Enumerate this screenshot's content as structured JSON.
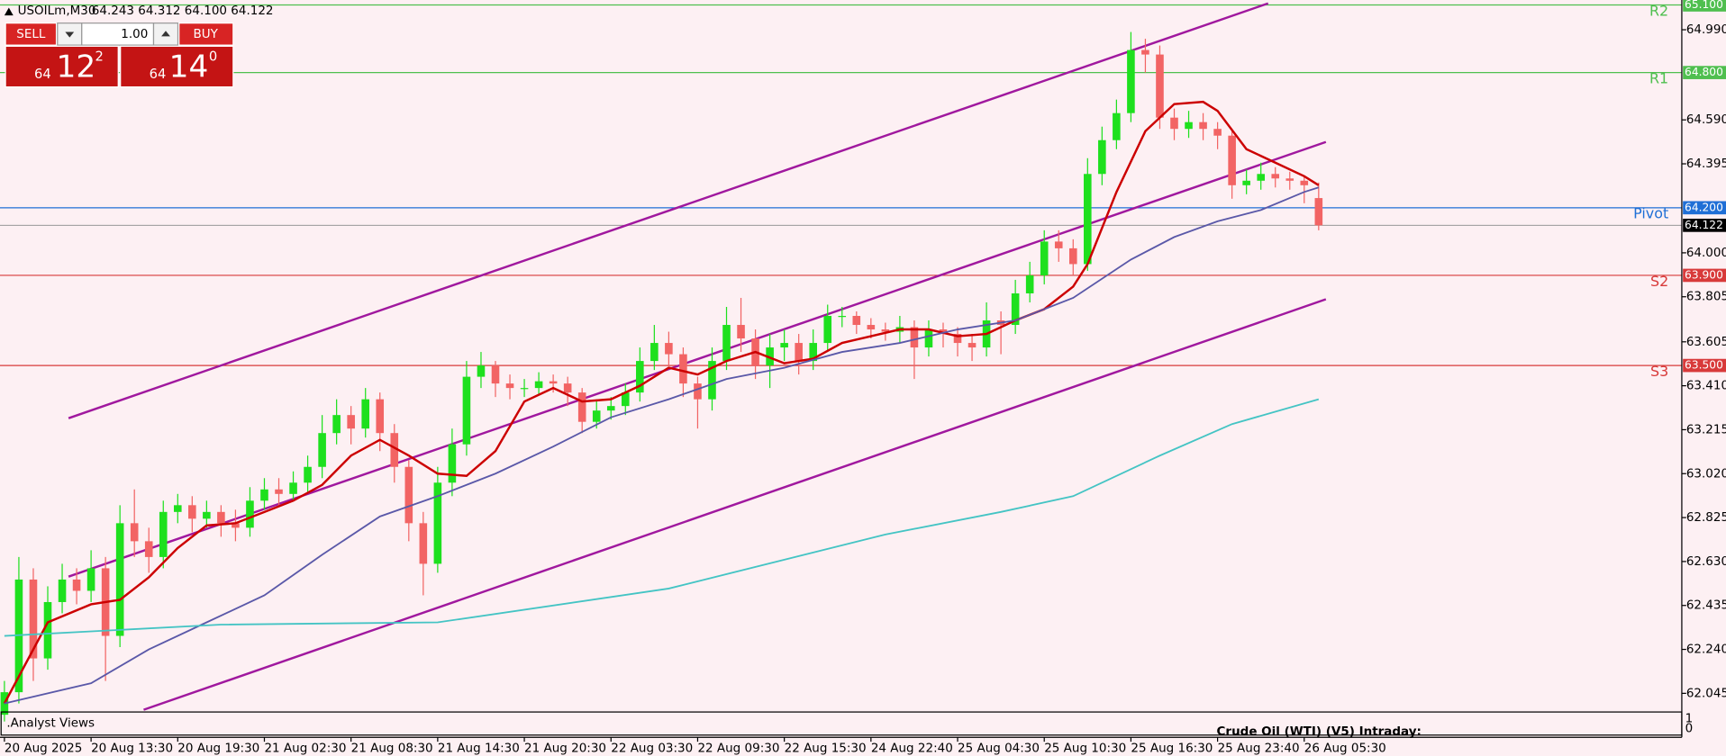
{
  "header": {
    "symbol": "USOILm,M30",
    "ohlc": "64.243 64.312 64.100 64.122"
  },
  "trade_panel": {
    "sell": "SELL",
    "buy": "BUY",
    "lot": "1.00",
    "sell_price": {
      "prefix": "64",
      "big": "12",
      "sup": "2"
    },
    "buy_price": {
      "prefix": "64",
      "big": "14",
      "sup": "0"
    }
  },
  "indicator_panel": {
    "name": ".Analyst Views",
    "caption": "Crude Oil (WTI) (V5) Intraday:",
    "yticks": [
      "1",
      "0"
    ]
  },
  "chart_data": {
    "type": "candlestick",
    "up_color": "#1ee01e",
    "down_color": "#f26464",
    "ylim": [
      61.972,
      65.122
    ],
    "yticks": [
      {
        "value": 64.99,
        "label": "64.990"
      },
      {
        "value": 64.59,
        "label": "64.590"
      },
      {
        "value": 64.395,
        "label": "64.395"
      },
      {
        "value": 64.0,
        "label": "64.000"
      },
      {
        "value": 63.805,
        "label": "63.805"
      },
      {
        "value": 63.605,
        "label": "63.605"
      },
      {
        "value": 63.41,
        "label": "63.410"
      },
      {
        "value": 63.215,
        "label": "63.215"
      },
      {
        "value": 63.02,
        "label": "63.020"
      },
      {
        "value": 62.825,
        "label": "62.825"
      },
      {
        "value": 62.63,
        "label": "62.630"
      },
      {
        "value": 62.435,
        "label": "62.435"
      },
      {
        "value": 62.24,
        "label": "62.240"
      },
      {
        "value": 62.045,
        "label": "62.045"
      }
    ],
    "categories": [
      "20 Aug 2025",
      null,
      null,
      null,
      null,
      null,
      "20 Aug 13:30",
      null,
      null,
      null,
      null,
      null,
      "20 Aug 19:30",
      null,
      null,
      null,
      null,
      null,
      "21 Aug 02:30",
      null,
      null,
      null,
      null,
      null,
      "21 Aug 08:30",
      null,
      null,
      null,
      null,
      null,
      "21 Aug 14:30",
      null,
      null,
      null,
      null,
      null,
      "21 Aug 20:30",
      null,
      null,
      null,
      null,
      null,
      "22 Aug 03:30",
      null,
      null,
      null,
      null,
      null,
      "22 Aug 09:30",
      null,
      null,
      null,
      null,
      null,
      "22 Aug 15:30",
      null,
      null,
      null,
      null,
      null,
      "24 Aug 22:40",
      null,
      null,
      null,
      null,
      null,
      "25 Aug 04:30",
      null,
      null,
      null,
      null,
      null,
      "25 Aug 10:30",
      null,
      null,
      null,
      null,
      null,
      "25 Aug 16:30",
      null,
      null,
      null,
      null,
      null,
      "25 Aug 23:40",
      null,
      null,
      null,
      null,
      null,
      "26 Aug 05:30",
      null
    ],
    "open": [
      61.95,
      62.05,
      62.55,
      62.2,
      62.45,
      62.55,
      62.5,
      62.6,
      62.3,
      62.8,
      62.72,
      62.65,
      62.85,
      62.88,
      62.82,
      62.85,
      62.8,
      62.78,
      62.9,
      62.95,
      62.93,
      62.98,
      63.05,
      63.2,
      63.28,
      63.22,
      63.35,
      63.2,
      63.05,
      62.8,
      62.62,
      62.98,
      63.15,
      63.45,
      63.5,
      63.42,
      63.4,
      63.4,
      63.43,
      63.42,
      63.38,
      63.25,
      63.3,
      63.32,
      63.38,
      63.52,
      63.6,
      63.55,
      63.42,
      63.35,
      63.52,
      63.68,
      63.62,
      63.5,
      63.58,
      63.6,
      63.52,
      63.6,
      63.72,
      63.72,
      63.68,
      63.66,
      63.65,
      63.67,
      63.58,
      63.66,
      63.64,
      63.6,
      63.58,
      63.7,
      63.68,
      63.82,
      63.9,
      64.05,
      64.02,
      63.95,
      64.35,
      64.5,
      64.62,
      64.9,
      64.88,
      64.6,
      64.55,
      64.58,
      64.55,
      64.52,
      64.3,
      64.32,
      64.35,
      64.33,
      64.32,
      64.243
    ],
    "high": [
      62.1,
      62.65,
      62.6,
      62.52,
      62.62,
      62.6,
      62.68,
      62.65,
      62.88,
      62.95,
      62.78,
      62.9,
      62.93,
      62.92,
      62.9,
      62.88,
      62.86,
      62.96,
      63.0,
      63.0,
      63.03,
      63.1,
      63.28,
      63.35,
      63.32,
      63.4,
      63.38,
      63.24,
      63.08,
      62.85,
      63.05,
      63.22,
      63.52,
      63.56,
      63.52,
      63.46,
      63.44,
      63.47,
      63.46,
      63.45,
      63.4,
      63.35,
      63.36,
      63.42,
      63.58,
      63.68,
      63.65,
      63.58,
      63.45,
      63.58,
      63.76,
      63.8,
      63.66,
      63.64,
      63.66,
      63.64,
      63.66,
      63.77,
      63.76,
      63.74,
      63.71,
      63.69,
      63.72,
      63.7,
      63.7,
      63.69,
      63.67,
      63.64,
      63.78,
      63.74,
      63.88,
      63.96,
      64.1,
      64.1,
      64.06,
      64.42,
      64.56,
      64.68,
      64.98,
      64.95,
      64.92,
      64.64,
      64.63,
      64.62,
      64.58,
      64.54,
      64.37,
      64.4,
      64.38,
      64.36,
      64.34,
      64.312
    ],
    "low": [
      61.92,
      62.0,
      62.1,
      62.15,
      62.4,
      62.44,
      62.45,
      62.1,
      62.25,
      62.65,
      62.58,
      62.6,
      62.8,
      62.76,
      62.78,
      62.74,
      62.72,
      62.74,
      62.86,
      62.88,
      62.9,
      62.94,
      63.0,
      63.15,
      63.15,
      63.18,
      63.12,
      62.98,
      62.72,
      62.48,
      62.58,
      62.92,
      63.1,
      63.4,
      63.36,
      63.35,
      63.36,
      63.37,
      63.38,
      63.32,
      63.2,
      63.22,
      63.26,
      63.28,
      63.34,
      63.48,
      63.5,
      63.36,
      63.22,
      63.3,
      63.48,
      63.56,
      63.44,
      63.4,
      63.52,
      63.46,
      63.48,
      63.56,
      63.67,
      63.64,
      63.62,
      63.61,
      63.6,
      63.44,
      63.54,
      63.58,
      63.54,
      63.52,
      63.54,
      63.55,
      63.64,
      63.78,
      63.86,
      63.96,
      63.9,
      63.92,
      64.3,
      64.46,
      64.58,
      64.8,
      64.55,
      64.5,
      64.51,
      64.5,
      64.46,
      64.24,
      64.26,
      64.28,
      64.29,
      64.28,
      64.22,
      64.1
    ],
    "close": [
      62.05,
      62.55,
      62.2,
      62.45,
      62.55,
      62.5,
      62.6,
      62.3,
      62.8,
      62.72,
      62.65,
      62.85,
      62.88,
      62.82,
      62.85,
      62.8,
      62.78,
      62.9,
      62.95,
      62.93,
      62.98,
      63.05,
      63.2,
      63.28,
      63.22,
      63.35,
      63.2,
      63.05,
      62.8,
      62.62,
      62.98,
      63.15,
      63.45,
      63.5,
      63.42,
      63.4,
      63.4,
      63.43,
      63.42,
      63.38,
      63.25,
      63.3,
      63.32,
      63.38,
      63.52,
      63.6,
      63.55,
      63.42,
      63.35,
      63.52,
      63.68,
      63.62,
      63.5,
      63.58,
      63.6,
      63.52,
      63.6,
      63.72,
      63.72,
      63.68,
      63.66,
      63.65,
      63.67,
      63.58,
      63.66,
      63.64,
      63.6,
      63.58,
      63.7,
      63.68,
      63.82,
      63.9,
      64.05,
      64.02,
      63.95,
      64.35,
      64.5,
      64.62,
      64.9,
      64.88,
      64.6,
      64.55,
      64.58,
      64.55,
      64.52,
      64.3,
      64.32,
      64.35,
      64.33,
      64.32,
      64.3,
      64.122
    ],
    "lines": [
      {
        "color": "#cc0000",
        "x": [
          0,
          3,
          6,
          8,
          10,
          12,
          14,
          16,
          18,
          20,
          22,
          24,
          26,
          28,
          30,
          32,
          34,
          36,
          38,
          40,
          42,
          44,
          46,
          48,
          50,
          52,
          54,
          56,
          58,
          60,
          62,
          64,
          66,
          68,
          70,
          72,
          74,
          75,
          77,
          79,
          81,
          83,
          84,
          86,
          88,
          90,
          91
        ],
        "values": [
          62.0,
          62.36,
          62.44,
          62.46,
          62.56,
          62.69,
          62.79,
          62.8,
          62.85,
          62.9,
          62.97,
          63.1,
          63.17,
          63.1,
          63.02,
          63.01,
          63.12,
          63.34,
          63.4,
          63.34,
          63.35,
          63.41,
          63.49,
          63.46,
          63.52,
          63.56,
          63.51,
          63.53,
          63.6,
          63.63,
          63.66,
          63.66,
          63.63,
          63.64,
          63.7,
          63.75,
          63.85,
          63.95,
          64.27,
          64.54,
          64.66,
          64.67,
          64.63,
          64.46,
          64.4,
          64.34,
          64.3
        ]
      },
      {
        "color": "#5a58a8",
        "x": [
          0,
          6,
          10,
          14,
          18,
          22,
          26,
          30,
          34,
          38,
          42,
          46,
          50,
          54,
          58,
          62,
          66,
          70,
          74,
          78,
          81,
          84,
          87,
          90,
          91
        ],
        "values": [
          62.0,
          62.09,
          62.24,
          62.36,
          62.48,
          62.66,
          62.83,
          62.92,
          63.02,
          63.14,
          63.27,
          63.35,
          63.44,
          63.49,
          63.56,
          63.6,
          63.66,
          63.7,
          63.8,
          63.97,
          64.07,
          64.14,
          64.19,
          64.27,
          64.29
        ]
      },
      {
        "color": "#44c4c4",
        "x": [
          0,
          15,
          30,
          46,
          61,
          69,
          74,
          80,
          85,
          91
        ],
        "values": [
          62.3,
          62.35,
          62.36,
          62.51,
          62.75,
          62.85,
          62.92,
          63.1,
          63.24,
          63.35
        ]
      }
    ],
    "trendlines": [
      {
        "color": "#a0189e",
        "x": [
          4.44,
          87.5
        ],
        "values": [
          63.266,
          65.107
        ]
      },
      {
        "color": "#a0189e",
        "x": [
          4.44,
          91.5
        ],
        "values": [
          62.563,
          64.492
        ]
      },
      {
        "color": "#a0189e",
        "x": [
          9.64,
          91.5
        ],
        "values": [
          61.972,
          63.794
        ]
      }
    ],
    "levels": [
      {
        "name": "R2",
        "value": 65.1,
        "label": "65.100",
        "color": "#4fbf4f"
      },
      {
        "name": "R1",
        "value": 64.8,
        "label": "64.800",
        "color": "#4fbf4f"
      },
      {
        "name": "Pivot",
        "value": 64.2,
        "label": "64.200",
        "color": "#1f6fd6"
      },
      {
        "name": "S2",
        "value": 63.9,
        "label": "63.900",
        "color": "#d83a3a"
      },
      {
        "name": "S3",
        "value": 63.5,
        "label": "63.500",
        "color": "#d83a3a"
      }
    ],
    "current": {
      "value": 64.122,
      "label": "64.122",
      "color": "#000000"
    }
  }
}
